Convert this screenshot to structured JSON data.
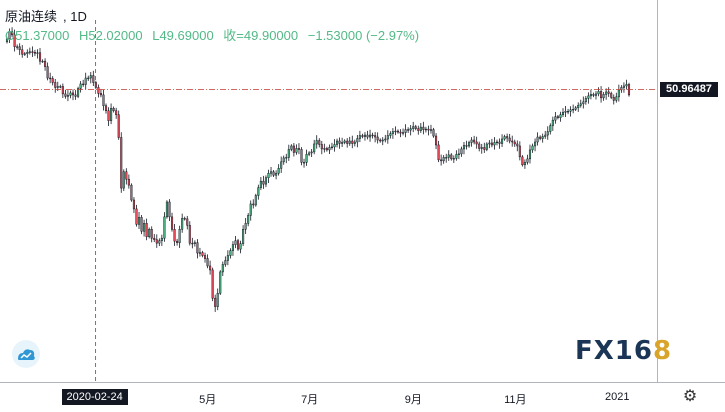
{
  "header": {
    "symbol": "原油连续",
    "interval": "1D",
    "open": "O51.37000",
    "high": "H52.02000",
    "low": "L49.69000",
    "close": "收=49.90000",
    "change": "−1.53000 (−2.97%)"
  },
  "crosshair": {
    "price_label": "50.96487",
    "date_label": "2020-02-24"
  },
  "brand": {
    "text": "FX16",
    "num": "8"
  },
  "colors": {
    "up": "#53b987",
    "down": "#eb4d5c",
    "outline": "#131722",
    "crosshair": "#c0392b",
    "brand": "#1b3556",
    "brand_accent": "#d8a52a"
  },
  "icons": {
    "settings": "gear-icon",
    "logo": "cloud-logo-icon"
  },
  "chart_data": {
    "type": "candlestick",
    "x_start": "2020-01-02",
    "x_end": "2021-01-08",
    "x_ticks": [
      {
        "date": "2020-05-01",
        "label": "5月"
      },
      {
        "date": "2020-07-01",
        "label": "7月"
      },
      {
        "date": "2020-09-01",
        "label": "9月"
      },
      {
        "date": "2020-11-01",
        "label": "11月"
      },
      {
        "date": "2021-01-01",
        "label": "2021"
      }
    ],
    "ylim": [
      -8,
      65
    ],
    "crosshair": {
      "date": "2020-02-24",
      "price": 50.96487
    },
    "closes": [
      61.2,
      62.7,
      62.0,
      59.6,
      59.6,
      59.0,
      58.1,
      58.2,
      58.5,
      58.6,
      58.5,
      58.3,
      58.4,
      56.7,
      56.7,
      55.6,
      53.3,
      53.2,
      52.4,
      51.4,
      51.6,
      51.6,
      50.1,
      49.6,
      49.8,
      50.3,
      49.9,
      49.6,
      51.2,
      52.1,
      52.0,
      53.3,
      53.3,
      53.8,
      52.4,
      51.4,
      50.2,
      49.9,
      47.7,
      46.7,
      44.7,
      47.2,
      46.7,
      45.9,
      41.3,
      31.1,
      34.4,
      32.9,
      31.7,
      28.7,
      26.9,
      23.8,
      25.2,
      22.4,
      24.0,
      21.3,
      22.8,
      21.0,
      20.7,
      20.0,
      20.5,
      21.0,
      25.3,
      28.3,
      25.3,
      22.8,
      20.4,
      20.1,
      22.8,
      25.0,
      24.9,
      23.6,
      20.0,
      19.9,
      20.1,
      18.0,
      18.1,
      17.5,
      16.9,
      15.4,
      14.6,
      8.9,
      7.2,
      9.9,
      14.2,
      15.7,
      16.5,
      17.5,
      18.5,
      19.7,
      20.5,
      18.8,
      19.9,
      22.8,
      24.0,
      25.6,
      27.9,
      27.7,
      29.6,
      31.2,
      32.5,
      31.9,
      33.2,
      34.1,
      34.4,
      33.7,
      34.1,
      35.1,
      36.4,
      37.2,
      37.3,
      38.9,
      39.6,
      38.3,
      39.1,
      38.9,
      36.3,
      36.3,
      37.9,
      38.2,
      38.4,
      40.0,
      40.7,
      39.9,
      39.0,
      39.1,
      38.8,
      39.3,
      39.4,
      39.9,
      40.6,
      40.1,
      40.3,
      40.6,
      40.1,
      40.6,
      40.1,
      40.4,
      41.1,
      41.7,
      41.5,
      41.8,
      41.4,
      41.8,
      41.7,
      41.4,
      40.8,
      40.6,
      40.8,
      41.0,
      41.7,
      42.1,
      42.5,
      42.6,
      42.4,
      42.2,
      42.3,
      42.9,
      42.8,
      43.1,
      43.5,
      43.1,
      42.7,
      43.4,
      42.9,
      43.0,
      42.8,
      42.9,
      41.6,
      39.8,
      36.8,
      36.6,
      37.3,
      37.3,
      37.8,
      37.0,
      37.1,
      37.9,
      38.0,
      39.0,
      39.7,
      39.6,
      40.3,
      40.8,
      40.4,
      40.0,
      39.1,
      39.3,
      38.9,
      40.0,
      40.2,
      39.8,
      40.3,
      40.4,
      40.1,
      41.0,
      41.5,
      41.2,
      40.6,
      40.4,
      40.0,
      39.6,
      37.4,
      35.8,
      36.3,
      37.0,
      38.8,
      39.6,
      40.4,
      41.4,
      41.1,
      41.5,
      41.8,
      42.5,
      43.7,
      44.8,
      45.5,
      45.3,
      45.9,
      46.4,
      46.6,
      46.6,
      46.9,
      47.0,
      47.3,
      47.8,
      48.1,
      48.5,
      49.2,
      49.7,
      50.0,
      49.8,
      50.1,
      50.6,
      49.3,
      50.0,
      50.5,
      50.2,
      49.4,
      48.8,
      49.5,
      50.9,
      51.4,
      51.7,
      52.0,
      49.9
    ]
  }
}
